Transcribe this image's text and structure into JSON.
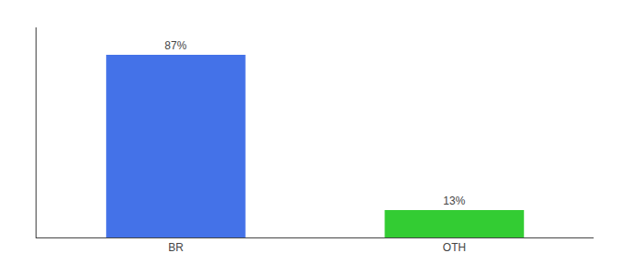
{
  "chart_data": {
    "type": "bar",
    "categories": [
      "BR",
      "OTH"
    ],
    "values": [
      87,
      13
    ],
    "value_labels": [
      "87%",
      "13%"
    ],
    "colors": [
      "#4472e8",
      "#33cc33"
    ],
    "ylim": [
      0,
      100
    ],
    "data_labels": true,
    "tick_labels": "x",
    "grid": false
  }
}
